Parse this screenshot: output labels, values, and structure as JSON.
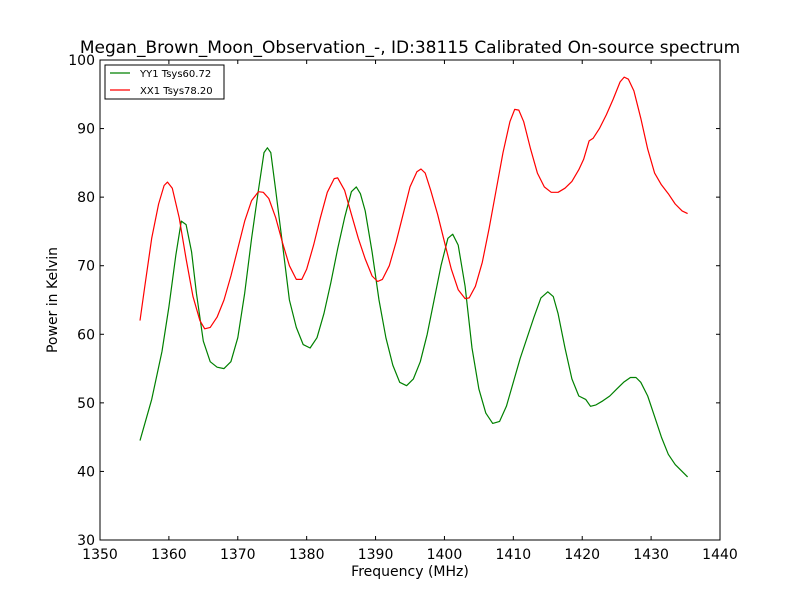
{
  "chart_data": {
    "type": "line",
    "title": "Megan_Brown_Moon_Observation_-, ID:38115 Calibrated On-source spectrum",
    "xlabel": "Frequency (MHz)",
    "ylabel": "Power in Kelvin",
    "xlim": [
      1350,
      1440
    ],
    "ylim": [
      30,
      100
    ],
    "xticks": [
      1350,
      1360,
      1370,
      1380,
      1390,
      1400,
      1410,
      1420,
      1430,
      1440
    ],
    "yticks": [
      30,
      40,
      50,
      60,
      70,
      80,
      90,
      100
    ],
    "grid": false,
    "legend_position": "top-left",
    "series": [
      {
        "name": "YY1 Tsys60.72",
        "color": "#008000",
        "points": [
          [
            1355.8,
            44.5
          ],
          [
            1357.5,
            50.5
          ],
          [
            1359,
            57.5
          ],
          [
            1360,
            64
          ],
          [
            1361,
            71.5
          ],
          [
            1361.8,
            76.5
          ],
          [
            1362.5,
            76
          ],
          [
            1363.3,
            72
          ],
          [
            1364,
            66
          ],
          [
            1365,
            59
          ],
          [
            1366,
            56
          ],
          [
            1367,
            55.2
          ],
          [
            1368,
            55
          ],
          [
            1369,
            56
          ],
          [
            1370,
            59.5
          ],
          [
            1371,
            66
          ],
          [
            1372,
            74
          ],
          [
            1373,
            81
          ],
          [
            1373.8,
            86.5
          ],
          [
            1374.3,
            87.2
          ],
          [
            1374.8,
            86.5
          ],
          [
            1375.5,
            81
          ],
          [
            1376.5,
            73
          ],
          [
            1377.5,
            65
          ],
          [
            1378.5,
            61
          ],
          [
            1379.5,
            58.5
          ],
          [
            1380.5,
            58
          ],
          [
            1381.5,
            59.5
          ],
          [
            1382.5,
            63
          ],
          [
            1383.5,
            67.5
          ],
          [
            1384.5,
            72.5
          ],
          [
            1385.5,
            77
          ],
          [
            1386.5,
            80.8
          ],
          [
            1387.2,
            81.5
          ],
          [
            1387.8,
            80.5
          ],
          [
            1388.5,
            78
          ],
          [
            1389.5,
            72
          ],
          [
            1390.5,
            65
          ],
          [
            1391.5,
            59.5
          ],
          [
            1392.5,
            55.5
          ],
          [
            1393.5,
            53
          ],
          [
            1394.5,
            52.5
          ],
          [
            1395.5,
            53.5
          ],
          [
            1396.5,
            56
          ],
          [
            1397.5,
            60
          ],
          [
            1398.5,
            65
          ],
          [
            1399.5,
            70
          ],
          [
            1400.5,
            74
          ],
          [
            1401.2,
            74.6
          ],
          [
            1402,
            73
          ],
          [
            1403,
            67
          ],
          [
            1404,
            58
          ],
          [
            1405,
            52
          ],
          [
            1406,
            48.5
          ],
          [
            1407,
            47
          ],
          [
            1408,
            47.3
          ],
          [
            1409,
            49.5
          ],
          [
            1410,
            53
          ],
          [
            1411,
            56.5
          ],
          [
            1412,
            59.5
          ],
          [
            1413,
            62.5
          ],
          [
            1414,
            65.3
          ],
          [
            1415,
            66.2
          ],
          [
            1415.8,
            65.5
          ],
          [
            1416.5,
            63
          ],
          [
            1417.5,
            58
          ],
          [
            1418.5,
            53.5
          ],
          [
            1419.5,
            51
          ],
          [
            1420.5,
            50.5
          ],
          [
            1421.2,
            49.5
          ],
          [
            1422,
            49.7
          ],
          [
            1423,
            50.3
          ],
          [
            1424,
            51
          ],
          [
            1425,
            52
          ],
          [
            1426,
            53
          ],
          [
            1427,
            53.7
          ],
          [
            1427.8,
            53.7
          ],
          [
            1428.5,
            53
          ],
          [
            1429.5,
            51
          ],
          [
            1430.5,
            48
          ],
          [
            1431.5,
            45
          ],
          [
            1432.5,
            42.5
          ],
          [
            1433.5,
            41
          ],
          [
            1434.5,
            40
          ],
          [
            1435.3,
            39.2
          ]
        ]
      },
      {
        "name": "XX1 Tsys78.20",
        "color": "#ff0000",
        "points": [
          [
            1355.8,
            62
          ],
          [
            1356.5,
            67
          ],
          [
            1357.5,
            74
          ],
          [
            1358.5,
            79
          ],
          [
            1359.3,
            81.7
          ],
          [
            1359.8,
            82.2
          ],
          [
            1360.5,
            81.3
          ],
          [
            1361.5,
            77
          ],
          [
            1362.5,
            71
          ],
          [
            1363.5,
            65.5
          ],
          [
            1364.5,
            62
          ],
          [
            1365.2,
            60.8
          ],
          [
            1366,
            61
          ],
          [
            1367,
            62.5
          ],
          [
            1368,
            65
          ],
          [
            1369,
            68.5
          ],
          [
            1370,
            72.5
          ],
          [
            1371,
            76.5
          ],
          [
            1372,
            79.5
          ],
          [
            1373,
            80.8
          ],
          [
            1373.7,
            80.7
          ],
          [
            1374.5,
            79.8
          ],
          [
            1375.5,
            77
          ],
          [
            1376.5,
            73.3
          ],
          [
            1377.5,
            70
          ],
          [
            1378.5,
            68
          ],
          [
            1379.3,
            68
          ],
          [
            1380,
            69.5
          ],
          [
            1381,
            73
          ],
          [
            1382,
            77
          ],
          [
            1383,
            80.7
          ],
          [
            1384,
            82.7
          ],
          [
            1384.5,
            82.8
          ],
          [
            1385.5,
            81
          ],
          [
            1386.5,
            77.5
          ],
          [
            1387.5,
            74
          ],
          [
            1388.5,
            71
          ],
          [
            1389.5,
            68.5
          ],
          [
            1390.3,
            67.7
          ],
          [
            1391,
            68
          ],
          [
            1392,
            70
          ],
          [
            1393,
            73.5
          ],
          [
            1394,
            77.5
          ],
          [
            1395,
            81.5
          ],
          [
            1396,
            83.7
          ],
          [
            1396.6,
            84.1
          ],
          [
            1397.2,
            83.5
          ],
          [
            1398,
            81
          ],
          [
            1399,
            77.5
          ],
          [
            1400,
            73.5
          ],
          [
            1401,
            69.5
          ],
          [
            1402,
            66.5
          ],
          [
            1403,
            65.2
          ],
          [
            1403.6,
            65.3
          ],
          [
            1404.5,
            67
          ],
          [
            1405.5,
            70.5
          ],
          [
            1406.5,
            75.5
          ],
          [
            1407.5,
            81
          ],
          [
            1408.5,
            86.5
          ],
          [
            1409.5,
            91
          ],
          [
            1410.2,
            92.8
          ],
          [
            1410.8,
            92.7
          ],
          [
            1411.5,
            91
          ],
          [
            1412.5,
            87
          ],
          [
            1413.5,
            83.5
          ],
          [
            1414.5,
            81.5
          ],
          [
            1415.5,
            80.7
          ],
          [
            1416.5,
            80.7
          ],
          [
            1417.5,
            81.3
          ],
          [
            1418.5,
            82.3
          ],
          [
            1419.5,
            84
          ],
          [
            1420.2,
            85.5
          ],
          [
            1421,
            88.2
          ],
          [
            1421.6,
            88.6
          ],
          [
            1422.5,
            90
          ],
          [
            1423.5,
            92
          ],
          [
            1424.5,
            94.3
          ],
          [
            1425.5,
            96.8
          ],
          [
            1426.1,
            97.5
          ],
          [
            1426.7,
            97.2
          ],
          [
            1427.5,
            95.5
          ],
          [
            1428.5,
            91.5
          ],
          [
            1429.5,
            87
          ],
          [
            1430.5,
            83.5
          ],
          [
            1431.5,
            81.8
          ],
          [
            1432.5,
            80.5
          ],
          [
            1433.5,
            79
          ],
          [
            1434.5,
            78
          ],
          [
            1435.3,
            77.6
          ]
        ]
      }
    ]
  }
}
